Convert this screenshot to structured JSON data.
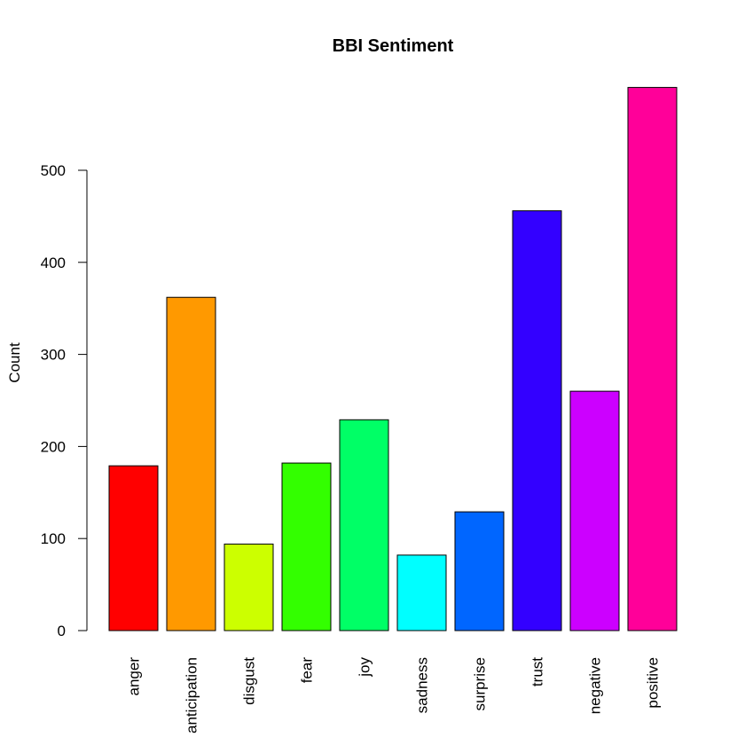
{
  "chart_data": {
    "type": "bar",
    "title": "BBI Sentiment",
    "xlabel": "",
    "ylabel": "Count",
    "ylim": [
      0,
      590
    ],
    "yticks": [
      0,
      100,
      200,
      300,
      400,
      500
    ],
    "categories": [
      "anger",
      "anticipation",
      "disgust",
      "fear",
      "joy",
      "sadness",
      "surprise",
      "trust",
      "negative",
      "positive"
    ],
    "values": [
      179,
      362,
      94,
      182,
      229,
      82,
      129,
      456,
      260,
      590
    ],
    "colors": [
      "#FF0000",
      "#FF9900",
      "#CCFF00",
      "#33FF00",
      "#00FF66",
      "#00FFFF",
      "#0066FF",
      "#3300FF",
      "#CC00FF",
      "#FF0099"
    ],
    "grid": false,
    "legend": "none",
    "label_orientation": "vertical"
  }
}
